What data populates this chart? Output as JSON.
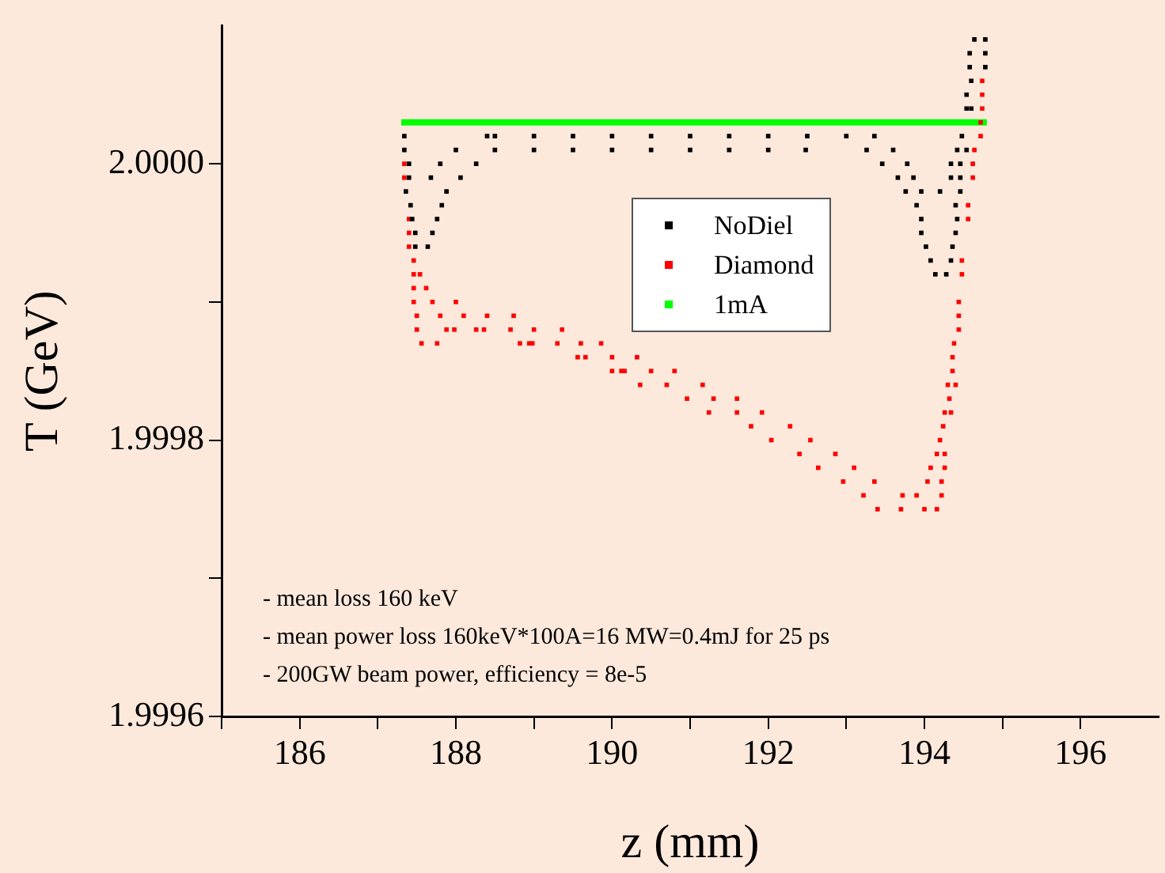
{
  "chart_data": {
    "type": "scatter",
    "xlabel": "z (mm)",
    "ylabel": "T (GeV)",
    "xlim": [
      185,
      197
    ],
    "ylim": [
      1.9996,
      2.0001
    ],
    "xticks": [
      {
        "value": 185,
        "label": null
      },
      186,
      {
        "value": 187,
        "label": null
      },
      188,
      {
        "value": 189,
        "label": null
      },
      190,
      {
        "value": 191,
        "label": null
      },
      192,
      {
        "value": 193,
        "label": null
      },
      194,
      {
        "value": 195,
        "label": null
      },
      196
    ],
    "yticks": [
      {
        "value": 1.9996,
        "label": "1.9996"
      },
      {
        "value": 1.9997,
        "label": null
      },
      {
        "value": 1.9998,
        "label": "1.9998"
      },
      {
        "value": 1.9999,
        "label": null
      },
      {
        "value": 2.0,
        "label": "2.0000"
      }
    ],
    "grid": false,
    "legend": "top",
    "marker": "square",
    "annotations": [
      "- mean loss 160 keV",
      "- mean power loss 160keV*100A=16 MW=0.4mJ for 25 ps",
      "- 200GW beam power, efficiency = 8e-5"
    ],
    "series": [
      {
        "name": "NoDiel",
        "color": "#000000",
        "x": [
          187.34,
          188.4,
          188.5,
          189.0,
          189.5,
          190.0,
          190.5,
          191.0,
          191.5,
          192.0,
          192.5,
          193.0,
          193.36,
          194.48,
          187.34,
          188.0,
          188.5,
          189.0,
          189.5,
          190.0,
          190.5,
          191.0,
          191.5,
          192.0,
          192.48,
          193.26,
          193.6,
          194.42,
          194.54,
          187.4,
          187.8,
          188.26,
          193.46,
          193.78,
          194.34,
          194.46,
          187.4,
          187.68,
          188.06,
          193.66,
          193.86,
          194.34,
          194.46,
          187.36,
          187.88,
          193.76,
          193.96,
          194.2,
          194.46,
          187.42,
          187.82,
          193.9,
          194.4,
          187.44,
          187.76,
          193.96,
          194.42,
          187.48,
          187.7,
          193.96,
          194.4,
          187.48,
          187.64,
          194.02,
          194.36,
          194.08,
          194.34,
          194.14,
          194.28,
          194.54,
          194.6,
          194.54,
          194.6,
          194.58,
          194.78,
          194.58,
          194.78,
          194.64,
          194.78
        ],
        "values": [
          2.00002,
          2.00002,
          2.00002,
          2.00002,
          2.00002,
          2.00002,
          2.00002,
          2.00002,
          2.00002,
          2.00002,
          2.00002,
          2.00002,
          2.00002,
          2.00002,
          2.00001,
          2.00001,
          2.00001,
          2.00001,
          2.00001,
          2.00001,
          2.00001,
          2.00001,
          2.00001,
          2.00001,
          2.00001,
          2.00001,
          2.00001,
          2.00001,
          2.00001,
          2.0,
          2.0,
          2.0,
          2.0,
          2.0,
          2.0,
          2.0,
          1.99999,
          1.99999,
          1.99999,
          1.99999,
          1.99999,
          1.99999,
          1.99999,
          1.99998,
          1.99998,
          1.99998,
          1.99998,
          1.99998,
          1.99998,
          1.99997,
          1.99997,
          1.99997,
          1.99997,
          1.99996,
          1.99996,
          1.99996,
          1.99996,
          1.99995,
          1.99995,
          1.99995,
          1.99995,
          1.99994,
          1.99994,
          1.99994,
          1.99994,
          1.99993,
          1.99993,
          1.99992,
          1.99992,
          2.00004,
          2.00004,
          2.00005,
          2.00006,
          2.00007,
          2.00007,
          2.00008,
          2.00008,
          2.00009,
          2.00009
        ]
      },
      {
        "name": "Diamond",
        "color": "#ff0000",
        "x": [
          187.34,
          187.34,
          187.4,
          187.4,
          187.4,
          187.46,
          187.46,
          187.54,
          187.46,
          187.62,
          187.46,
          187.7,
          188.0,
          187.5,
          187.8,
          188.1,
          188.4,
          188.74,
          187.5,
          187.88,
          187.98,
          188.26,
          188.36,
          188.7,
          189.0,
          189.36,
          187.56,
          187.76,
          188.82,
          188.94,
          188.98,
          189.3,
          189.6,
          189.86,
          189.56,
          189.66,
          190.0,
          190.32,
          190.0,
          190.12,
          190.16,
          190.5,
          190.8,
          190.36,
          190.7,
          191.16,
          190.96,
          191.3,
          191.6,
          191.24,
          191.6,
          191.92,
          191.78,
          192.28,
          192.04,
          192.54,
          192.4,
          192.86,
          192.64,
          193.1,
          192.96,
          193.36,
          194.04,
          194.22,
          193.22,
          193.72,
          193.9,
          194.22,
          193.4,
          193.7,
          194.0,
          194.16,
          194.08,
          194.26,
          194.16,
          194.26,
          194.2,
          194.24,
          194.26,
          194.34,
          194.32,
          194.3,
          194.4,
          194.36,
          194.36,
          194.38,
          194.44,
          194.44,
          194.44,
          194.48,
          194.48,
          194.56,
          194.56,
          194.62,
          194.62,
          194.64,
          194.72,
          194.72,
          194.74,
          194.74,
          194.74
        ],
        "values": [
          2.0,
          1.99999,
          1.99996,
          1.99995,
          1.99994,
          1.99993,
          1.99992,
          1.99992,
          1.99991,
          1.99991,
          1.9999,
          1.9999,
          1.9999,
          1.99989,
          1.99989,
          1.99989,
          1.99989,
          1.99989,
          1.99988,
          1.99988,
          1.99988,
          1.99988,
          1.99988,
          1.99988,
          1.99988,
          1.99988,
          1.99987,
          1.99987,
          1.99987,
          1.99987,
          1.99987,
          1.99987,
          1.99987,
          1.99987,
          1.99986,
          1.99986,
          1.99986,
          1.99986,
          1.99985,
          1.99985,
          1.99985,
          1.99985,
          1.99985,
          1.99984,
          1.99984,
          1.99984,
          1.99983,
          1.99983,
          1.99983,
          1.99982,
          1.99982,
          1.99982,
          1.99981,
          1.99981,
          1.9998,
          1.9998,
          1.99979,
          1.99979,
          1.99978,
          1.99978,
          1.99977,
          1.99977,
          1.99977,
          1.99977,
          1.99976,
          1.99976,
          1.99976,
          1.99976,
          1.99975,
          1.99975,
          1.99975,
          1.99975,
          1.99978,
          1.99978,
          1.99979,
          1.99979,
          1.9998,
          1.99981,
          1.99982,
          1.99982,
          1.99983,
          1.99984,
          1.99984,
          1.99985,
          1.99986,
          1.99987,
          1.99988,
          1.99989,
          1.9999,
          1.99992,
          1.99993,
          1.99996,
          1.99997,
          1.99999,
          2.0,
          2.00001,
          2.00002,
          2.00003,
          2.00004,
          2.00005,
          2.00006
        ]
      },
      {
        "name": "1mA",
        "type": "line",
        "marker": "none",
        "color": "#00ff00",
        "x": [
          187.3,
          194.8
        ],
        "values": [
          2.00003,
          2.00003
        ]
      }
    ]
  }
}
